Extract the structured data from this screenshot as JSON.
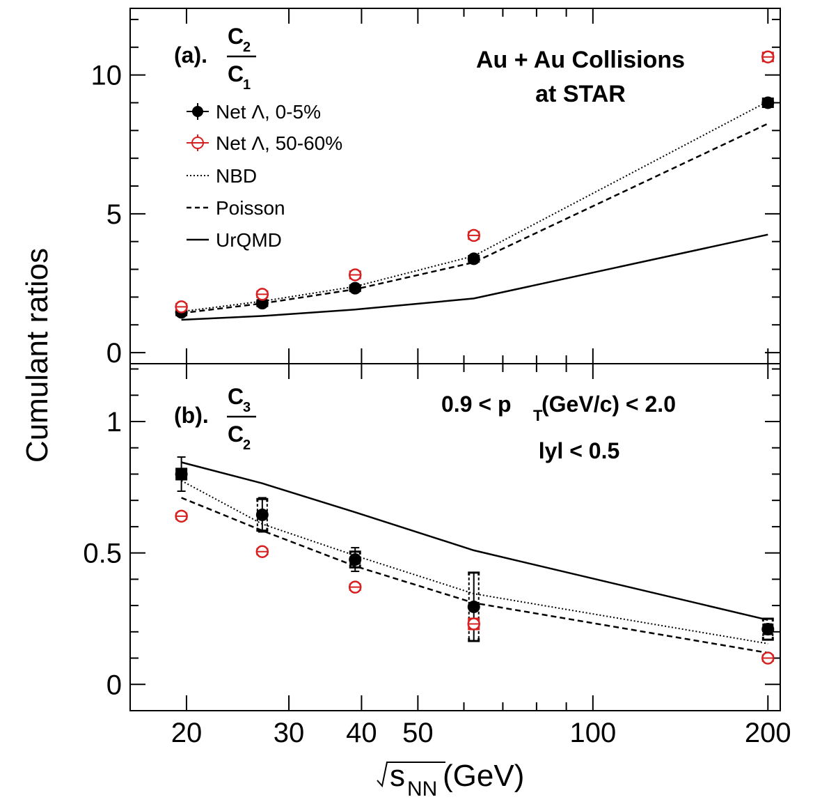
{
  "chart_data": [
    {
      "type": "line",
      "panel_label": "(a).",
      "ratio_label": {
        "numerator": "C",
        "numerator_sub": "2",
        "denominator": "C",
        "denominator_sub": "1"
      },
      "title": "Au + Au Collisions",
      "subtitle": "at STAR",
      "xlabel": "√s_NN (GeV)",
      "ylabel": "Cumulant ratios",
      "xscale": "log",
      "xlim": [
        16,
        210
      ],
      "ylim": [
        -0.4,
        12.4
      ],
      "yticks": [
        0,
        5,
        10
      ],
      "ytick_labels": [
        "0",
        "5",
        "10"
      ],
      "x": [
        19.6,
        27,
        39,
        62.4,
        200
      ],
      "series": [
        {
          "name": "Net Λ, 0-5%",
          "marker": "filled-circle",
          "color": "#000000",
          "values": [
            1.45,
            1.78,
            2.32,
            3.38,
            9.0
          ],
          "sys": [
            0.1,
            0.1,
            0.1,
            0.1,
            0.15
          ]
        },
        {
          "name": "Net Λ, 50-60%",
          "marker": "open-circle",
          "color": "#d62020",
          "values": [
            1.65,
            2.1,
            2.8,
            4.22,
            10.65
          ],
          "sys": [
            0.1,
            0.1,
            0.12,
            0.12,
            0.15
          ]
        },
        {
          "name": "NBD",
          "style": "dotted",
          "color": "#000000",
          "values": [
            1.48,
            1.85,
            2.38,
            3.48,
            9.05
          ]
        },
        {
          "name": "Poisson",
          "style": "dashed",
          "color": "#000000",
          "values": [
            1.42,
            1.77,
            2.28,
            3.25,
            8.25
          ]
        },
        {
          "name": "UrQMD",
          "style": "solid",
          "color": "#000000",
          "values": [
            1.18,
            1.32,
            1.55,
            1.95,
            4.25
          ]
        }
      ]
    },
    {
      "type": "line",
      "panel_label": "(b).",
      "ratio_label": {
        "numerator": "C",
        "numerator_sub": "3",
        "denominator": "C",
        "denominator_sub": "2"
      },
      "annotation_line1": "0.9 < p",
      "annotation_line1_sub": "T",
      "annotation_line1_rest": " (GeV/c) < 2.0",
      "annotation_line2": "lyl < 0.5",
      "xlabel": "√s_NN (GeV)",
      "xscale": "log",
      "xlim": [
        16,
        210
      ],
      "ylim": [
        -0.1,
        1.22
      ],
      "yticks": [
        0,
        0.5,
        1
      ],
      "ytick_labels": [
        "0",
        "0.5",
        "1"
      ],
      "x": [
        19.6,
        27,
        39,
        62.4,
        200
      ],
      "series": [
        {
          "name": "Net Λ, 0-5%",
          "marker": "filled-circle",
          "color": "#000000",
          "values": [
            0.8,
            0.645,
            0.475,
            0.295,
            0.21
          ],
          "stat": [
            0.065,
            0.065,
            0.045,
            0.13,
            0.02
          ],
          "sys": [
            0.02,
            0.06,
            0.03,
            0.13,
            0.04
          ]
        },
        {
          "name": "Net Λ, 50-60%",
          "marker": "open-circle",
          "color": "#d62020",
          "values": [
            0.64,
            0.505,
            0.37,
            0.23,
            0.1
          ],
          "sys": [
            0.01,
            0.01,
            0.01,
            0.02,
            0.01
          ]
        },
        {
          "name": "NBD",
          "style": "dotted",
          "color": "#000000",
          "values": [
            0.775,
            0.61,
            0.49,
            0.345,
            0.155
          ]
        },
        {
          "name": "Poisson",
          "style": "dashed",
          "color": "#000000",
          "values": [
            0.71,
            0.585,
            0.45,
            0.31,
            0.12
          ]
        },
        {
          "name": "UrQMD",
          "style": "solid",
          "color": "#000000",
          "values": [
            0.845,
            0.765,
            0.655,
            0.51,
            0.245
          ]
        }
      ]
    }
  ],
  "x_axis": {
    "ticks": [
      20,
      30,
      40,
      50,
      100,
      200
    ],
    "tick_labels": [
      "20",
      "30",
      "40",
      "50",
      "100",
      "200"
    ],
    "minor_ticks": [
      60,
      70,
      80,
      90
    ],
    "label_main": "s",
    "label_sub": "NN",
    "label_unit": " (GeV)"
  },
  "y_axis": {
    "label": "Cumulant ratios"
  },
  "legend": [
    {
      "label": "Net Λ, 0-5%",
      "kind": "filled-circle"
    },
    {
      "label": "Net Λ, 50-60%",
      "kind": "open-circle"
    },
    {
      "label": "NBD",
      "kind": "dotted"
    },
    {
      "label": "Poisson",
      "kind": "dashed"
    },
    {
      "label": "UrQMD",
      "kind": "solid"
    }
  ],
  "colors": {
    "red": "#d62020",
    "black": "#000000"
  }
}
